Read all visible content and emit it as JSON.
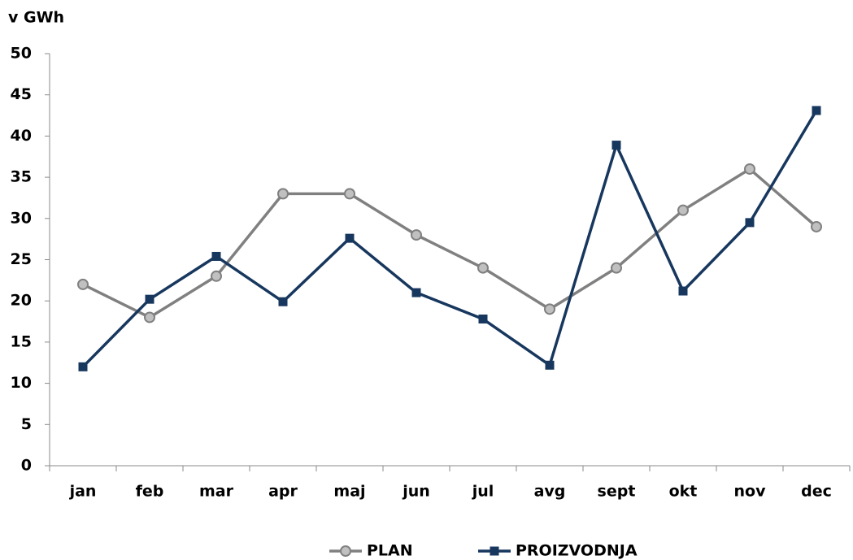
{
  "chart_data": {
    "type": "line",
    "y_axis_label": "v GWh",
    "categories": [
      "jan",
      "feb",
      "mar",
      "apr",
      "maj",
      "jun",
      "jul",
      "avg",
      "sept",
      "okt",
      "nov",
      "dec"
    ],
    "series": [
      {
        "name": "PLAN",
        "color": "#808080",
        "marker": "circle",
        "values": [
          22,
          18,
          23,
          33,
          33,
          28,
          24,
          19,
          24,
          31,
          36,
          29
        ]
      },
      {
        "name": "PROIZVODNJA",
        "color": "#17375e",
        "marker": "square",
        "values": [
          12,
          20.2,
          25.4,
          19.9,
          27.6,
          21,
          17.8,
          12.2,
          38.9,
          21.2,
          29.5,
          43.1
        ]
      }
    ],
    "ylim": [
      0,
      50
    ],
    "yticks": [
      0,
      5,
      10,
      15,
      20,
      25,
      30,
      35,
      40,
      45,
      50
    ],
    "grid": false,
    "legend": "bottom"
  }
}
